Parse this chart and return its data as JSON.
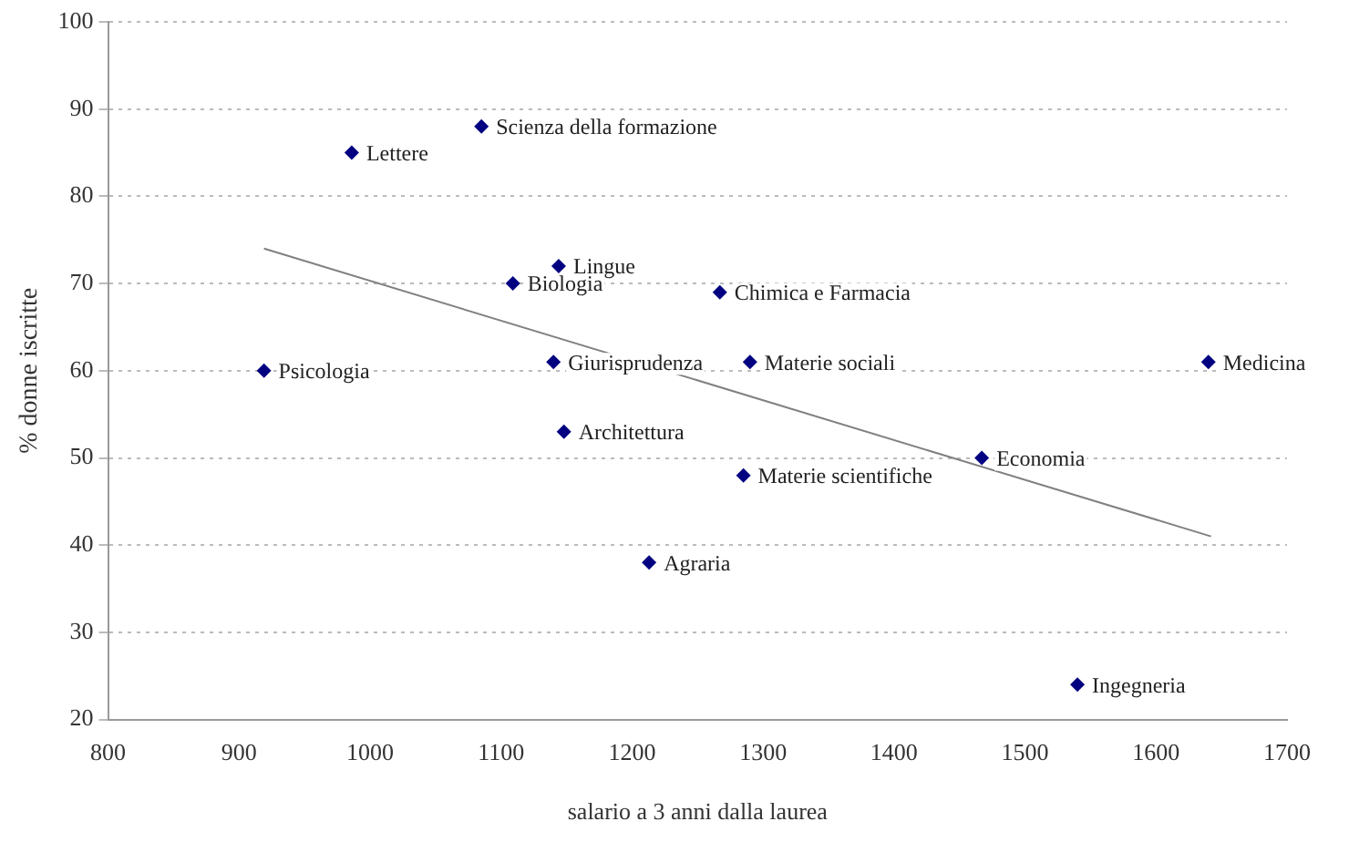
{
  "chart_data": {
    "type": "scatter",
    "xlabel": "salario a 3 anni dalla laurea",
    "ylabel": "% donne iscritte",
    "xlim": [
      800,
      1700
    ],
    "xticks": [
      800,
      900,
      1000,
      1100,
      1200,
      1300,
      1400,
      1500,
      1600,
      1700
    ],
    "ylim": [
      20,
      100
    ],
    "yticks": [
      20,
      30,
      40,
      50,
      60,
      70,
      80,
      90,
      100
    ],
    "grid": "y",
    "legend": false,
    "marker": "diamond",
    "series": [
      {
        "type": "scatter",
        "color": "#000080",
        "x": [
          986,
          1085,
          1144,
          1109,
          919,
          1140,
          1267,
          1290,
          1640,
          1148,
          1285,
          1467,
          1213,
          1540
        ],
        "values": [
          85,
          88,
          72,
          70,
          60,
          61,
          69,
          61,
          61,
          53,
          48,
          50,
          38,
          24
        ]
      },
      {
        "type": "line",
        "color": "#808080",
        "marker": "none",
        "x": [
          919,
          1642
        ],
        "values": [
          74,
          41
        ]
      }
    ],
    "annotations": [
      {
        "text": "Lettere",
        "x": 986,
        "y": 85
      },
      {
        "text": "Scienza della formazione",
        "x": 1085,
        "y": 88
      },
      {
        "text": "Lingue",
        "x": 1144,
        "y": 72
      },
      {
        "text": "Biologia",
        "x": 1109,
        "y": 70
      },
      {
        "text": "Psicologia",
        "x": 919,
        "y": 60
      },
      {
        "text": "Giurisprudenza",
        "x": 1140,
        "y": 61
      },
      {
        "text": "Chimica e Farmacia",
        "x": 1267,
        "y": 69
      },
      {
        "text": "Materie sociali",
        "x": 1290,
        "y": 61
      },
      {
        "text": "Medicina",
        "x": 1640,
        "y": 61
      },
      {
        "text": "Architettura",
        "x": 1148,
        "y": 53
      },
      {
        "text": "Materie scientifiche",
        "x": 1285,
        "y": 48
      },
      {
        "text": "Economia",
        "x": 1467,
        "y": 50
      },
      {
        "text": "Agraria",
        "x": 1213,
        "y": 38
      },
      {
        "text": "Ingegneria",
        "x": 1540,
        "y": 24
      }
    ]
  }
}
